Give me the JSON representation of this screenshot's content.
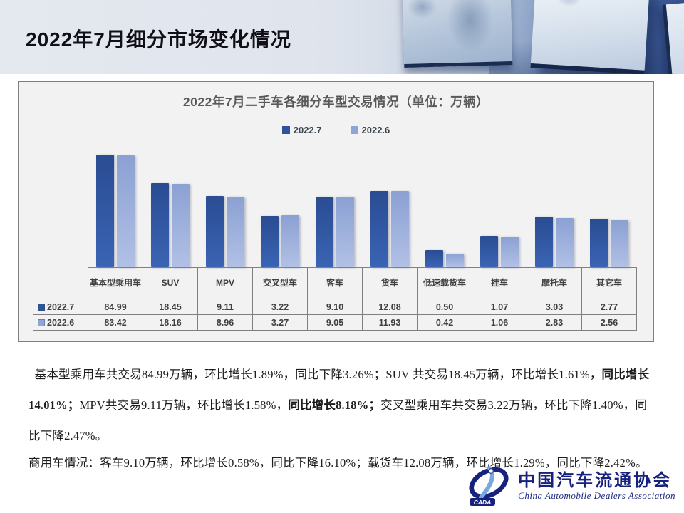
{
  "page": {
    "title": "2022年7月细分市场变化情况"
  },
  "chart_data": {
    "type": "bar",
    "title": "2022年7月二手车各细分车型交易情况（单位：万辆）",
    "unit": "万辆",
    "y_scale": "log",
    "y_min": 0.2,
    "grid": false,
    "legend_position": "top",
    "categories": [
      "基本型乘用车",
      "SUV",
      "MPV",
      "交叉型车",
      "客车",
      "货车",
      "低速载货车",
      "挂车",
      "摩托车",
      "其它车"
    ],
    "series": [
      {
        "name": "2022.7",
        "color": "#2E5597",
        "values": [
          84.99,
          18.45,
          9.11,
          3.22,
          9.1,
          12.08,
          0.5,
          1.07,
          3.03,
          2.77
        ]
      },
      {
        "name": "2022.6",
        "color": "#8FA5D6",
        "values": [
          83.42,
          18.16,
          8.96,
          3.27,
          9.05,
          11.93,
          0.42,
          1.06,
          2.83,
          2.56
        ]
      }
    ]
  },
  "body": {
    "lines": [
      [
        {
          "t": "  基本型乘用车共交易84.99万辆，环比增长1.89%，同比下降3.26%；SUV 共交易18.45万辆，环比增长1.61%，",
          "b": false
        },
        {
          "t": "同比增长",
          "b": true
        }
      ],
      [
        {
          "t": "14.01%；",
          "b": true
        },
        {
          "t": "MPV共交易9.11万辆，环比增长1.58%，",
          "b": false
        },
        {
          "t": "同比增长8.18%；",
          "b": true
        },
        {
          "t": "交叉型乘用车共交易3.22万辆，环比下降1.40%，同",
          "b": false
        }
      ],
      [
        {
          "t": "比下降2.47%。",
          "b": false
        }
      ],
      [
        {
          "t": "商用车情况：客车9.10万辆，环比增长0.58%，同比下降16.10%；载货车12.08万辆，环比增长1.29%，同比下降2.42%。",
          "b": false
        }
      ]
    ]
  },
  "logo": {
    "cn": "中国汽车流通协会",
    "en": "China Automobile Dealers Association",
    "acronym": "CADA"
  }
}
